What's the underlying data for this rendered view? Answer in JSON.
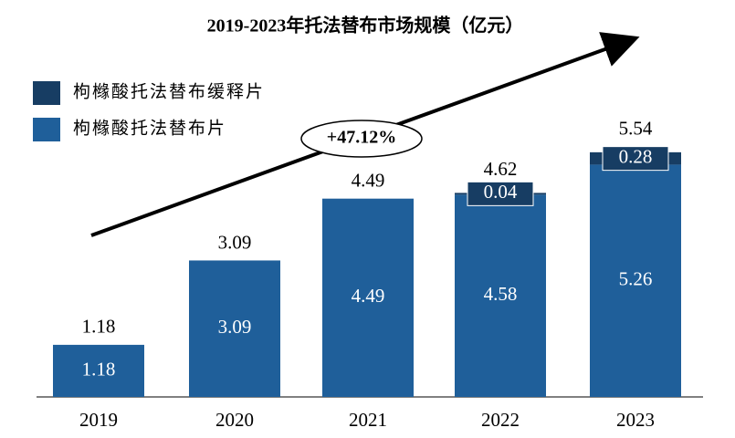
{
  "chart_data": {
    "type": "stacked_bar",
    "title": "2019-2023年托法替布市场规模（亿元）",
    "categories": [
      "2019",
      "2020",
      "2021",
      "2022",
      "2023"
    ],
    "series": [
      {
        "name": "枸橼酸托法替布片",
        "color": "#1f5f9a",
        "values": [
          1.18,
          3.09,
          4.49,
          4.58,
          5.26
        ]
      },
      {
        "name": "枸橼酸托法替布缓释片",
        "color": "#173d63",
        "values": [
          null,
          null,
          null,
          0.04,
          0.28
        ]
      }
    ],
    "totals": [
      1.18,
      3.09,
      4.49,
      4.62,
      5.54
    ],
    "annotation": "+47.12%"
  }
}
